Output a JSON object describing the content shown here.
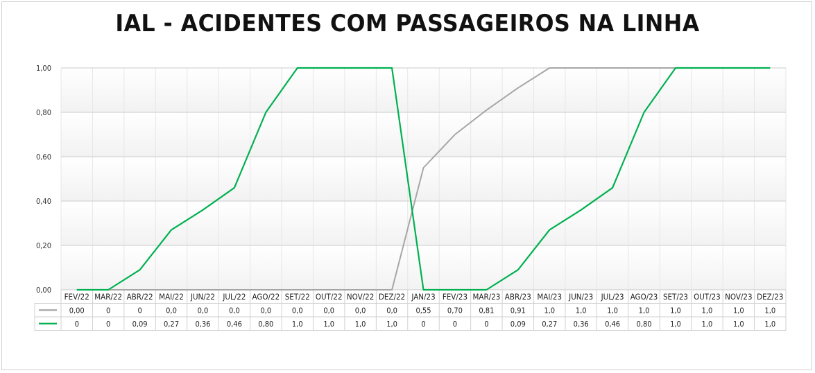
{
  "chart_data": {
    "type": "line",
    "title": "IAL - ACIDENTES COM PASSAGEIROS NA LINHA",
    "categories": [
      "FEV/22",
      "MAR/22",
      "ABR/22",
      "MAI/22",
      "JUN/22",
      "JUL/22",
      "AGO/22",
      "SET/22",
      "OUT/22",
      "NOV/22",
      "DEZ/22",
      "JAN/23",
      "FEV/23",
      "MAR/23",
      "ABR/23",
      "MAI/23",
      "JUN/23",
      "JUL/23",
      "AGO/23",
      "SET/23",
      "OUT/23",
      "NOV/23",
      "DEZ/23"
    ],
    "ylim": [
      0,
      1
    ],
    "yticks": [
      "0,00",
      "0,20",
      "0,40",
      "0,60",
      "0,80",
      "1,00"
    ],
    "grid": true,
    "series": [
      {
        "color": "#a6a6a6",
        "values": [
          0,
          0,
          0,
          0,
          0,
          0,
          0,
          0,
          0,
          0,
          0,
          0.55,
          0.7,
          0.81,
          0.91,
          1.0,
          1.0,
          1.0,
          1.0,
          1.0,
          1.0,
          1.0,
          1.0
        ],
        "labels": [
          "0,00",
          "0",
          "0",
          "0,0",
          "0,0",
          "0,0",
          "0,0",
          "0,0",
          "0,0",
          "0,0",
          "0,0",
          "0,55",
          "0,70",
          "0,81",
          "0,91",
          "1,0",
          "1,0",
          "1,0",
          "1,0",
          "1,0",
          "1,0",
          "1,0",
          "1,0"
        ]
      },
      {
        "color": "#00b050",
        "values": [
          0,
          0,
          0.09,
          0.27,
          0.36,
          0.46,
          0.8,
          1.0,
          1.0,
          1.0,
          1.0,
          0,
          0,
          0,
          0.09,
          0.27,
          0.36,
          0.46,
          0.8,
          1.0,
          1.0,
          1.0,
          1.0
        ],
        "labels": [
          "0",
          "0",
          "0,09",
          "0,27",
          "0,36",
          "0,46",
          "0,80",
          "1,0",
          "1,0",
          "1,0",
          "1,0",
          "0",
          "0",
          "0",
          "0,09",
          "0,27",
          "0,36",
          "0,46",
          "0,80",
          "1,0",
          "1,0",
          "1,0",
          "1,0"
        ]
      }
    ]
  }
}
